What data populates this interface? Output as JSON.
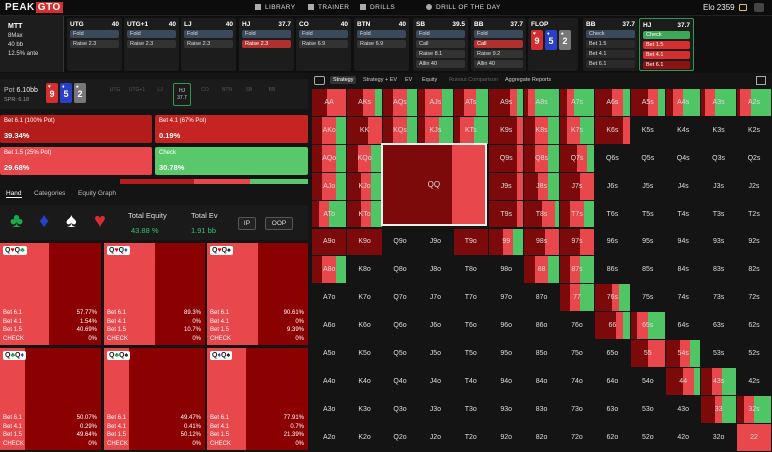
{
  "topbar": {
    "logo_a": "PEAK",
    "logo_b": "GTO",
    "nav": [
      "LIBRARY",
      "TRAINER",
      "DRILLS",
      "DRILL OF THE DAY"
    ],
    "elo_label": "Elo",
    "elo_value": "2359"
  },
  "game": {
    "title": "MTT",
    "format": "8Max",
    "stack": "40 bb",
    "ante": "12.5% ante"
  },
  "positions": [
    {
      "name": "UTG",
      "stack": "40",
      "opts": [
        "Fold",
        "Raise 2.3"
      ],
      "sel": -1
    },
    {
      "name": "UTG+1",
      "stack": "40",
      "opts": [
        "Fold",
        "Raise 2.3"
      ],
      "sel": -1
    },
    {
      "name": "LJ",
      "stack": "40",
      "opts": [
        "Fold",
        "Raise 2.3"
      ],
      "sel": -1
    },
    {
      "name": "HJ",
      "stack": "37.7",
      "opts": [
        "Fold",
        "Raise 2.3"
      ],
      "sel": 1
    },
    {
      "name": "CO",
      "stack": "40",
      "opts": [
        "Fold",
        "Raise 6.9"
      ],
      "sel": -1
    },
    {
      "name": "BTN",
      "stack": "40",
      "opts": [
        "Fold",
        "Raise 6.9"
      ],
      "sel": -1
    },
    {
      "name": "SB",
      "stack": "39.5",
      "opts": [
        "Fold",
        "Call",
        "Raise 8.1",
        "Allin 40"
      ],
      "sel": -1
    },
    {
      "name": "BB",
      "stack": "37.7",
      "opts": [
        "Fold",
        "Call",
        "Raise 9.2",
        "Allin 40"
      ],
      "sel": 1
    }
  ],
  "flop": {
    "label": "FLOP",
    "cards": [
      "9",
      "5",
      "2"
    ]
  },
  "bb_street": {
    "name": "BB",
    "stack": "37.7",
    "opts": [
      "Check",
      "Bet 1.5",
      "Bet 4.1",
      "Bet 6.1"
    ]
  },
  "hj_street": {
    "name": "HJ",
    "stack": "37.7",
    "opts": [
      "Check",
      "Bet 1.5",
      "Bet 4.1",
      "Bet 6.1"
    ]
  },
  "pot": {
    "label": "Pot",
    "value": "6.10bb",
    "spr": "SPR: 6.18",
    "board": [
      "9",
      "5",
      "2"
    ],
    "players": [
      "UTG",
      "UTG+1",
      "LJ",
      "HJ",
      "CO",
      "BTN",
      "SB",
      "BB"
    ],
    "hj_stack": "37.7"
  },
  "actions": [
    {
      "name": "Bet 6.1 (100% Pot)",
      "pct": "39.34%"
    },
    {
      "name": "Bet 4.1 (67% Pot)",
      "pct": "0.19%"
    },
    {
      "name": "Bet 1.5 (25% Pot)",
      "pct": "29.68%"
    },
    {
      "name": "Check",
      "pct": "30.78%"
    }
  ],
  "tabs": [
    "Hand",
    "Categories",
    "Equity Graph"
  ],
  "equity": {
    "total_equity_label": "Total Equity",
    "total_equity": "43.88 %",
    "total_ev_label": "Total Ev",
    "total_ev": "1.91 bb",
    "ip": "IP",
    "oop": "OOP"
  },
  "combos": [
    {
      "tag": [
        "Q",
        "♥",
        "Q",
        "♣"
      ],
      "vals": [
        "57.77%",
        "1.54%",
        "40.69%",
        "0%"
      ],
      "fill": 0.98
    },
    {
      "tag": [
        "Q",
        "♥",
        "Q",
        "♦"
      ],
      "vals": [
        "89.3%",
        "0%",
        "10.7%",
        "0%"
      ],
      "fill": 1.0
    },
    {
      "tag": [
        "Q",
        "♥",
        "Q",
        "♠"
      ],
      "vals": [
        "90.61%",
        "0%",
        "9.39%",
        "0%"
      ],
      "fill": 1.0
    },
    {
      "tag": [
        "Q",
        "♣",
        "Q",
        "♦"
      ],
      "vals": [
        "50.07%",
        "0.29%",
        "49.64%",
        "0%"
      ],
      "fill": 0.5
    },
    {
      "tag": [
        "Q",
        "♣",
        "Q",
        "♠"
      ],
      "vals": [
        "49.47%",
        "0.41%",
        "50.12%",
        "0%"
      ],
      "fill": 0.5
    },
    {
      "tag": [
        "Q",
        "♦",
        "Q",
        "♠"
      ],
      "vals": [
        "77.91%",
        "0.7%",
        "21.39%",
        "0%"
      ],
      "fill": 0.78
    }
  ],
  "combo_rows": [
    "Bet 6.1",
    "Bet 4.1",
    "Bet 1.5",
    "CHECK"
  ],
  "matrix_tabs": [
    "Strategy",
    "Strategy + EV",
    "EV",
    "Equity",
    "Runout Comparison",
    "Aggregate Reports"
  ],
  "ranks": [
    "A",
    "K",
    "Q",
    "J",
    "T",
    "9",
    "8",
    "7",
    "6",
    "5",
    "4",
    "3",
    "2"
  ],
  "colors": {
    "dark": "#7d0a0a",
    "bright": "#e8474c",
    "green": "#4fc566",
    "empty": "#141414",
    "check": "#58c86a"
  }
}
